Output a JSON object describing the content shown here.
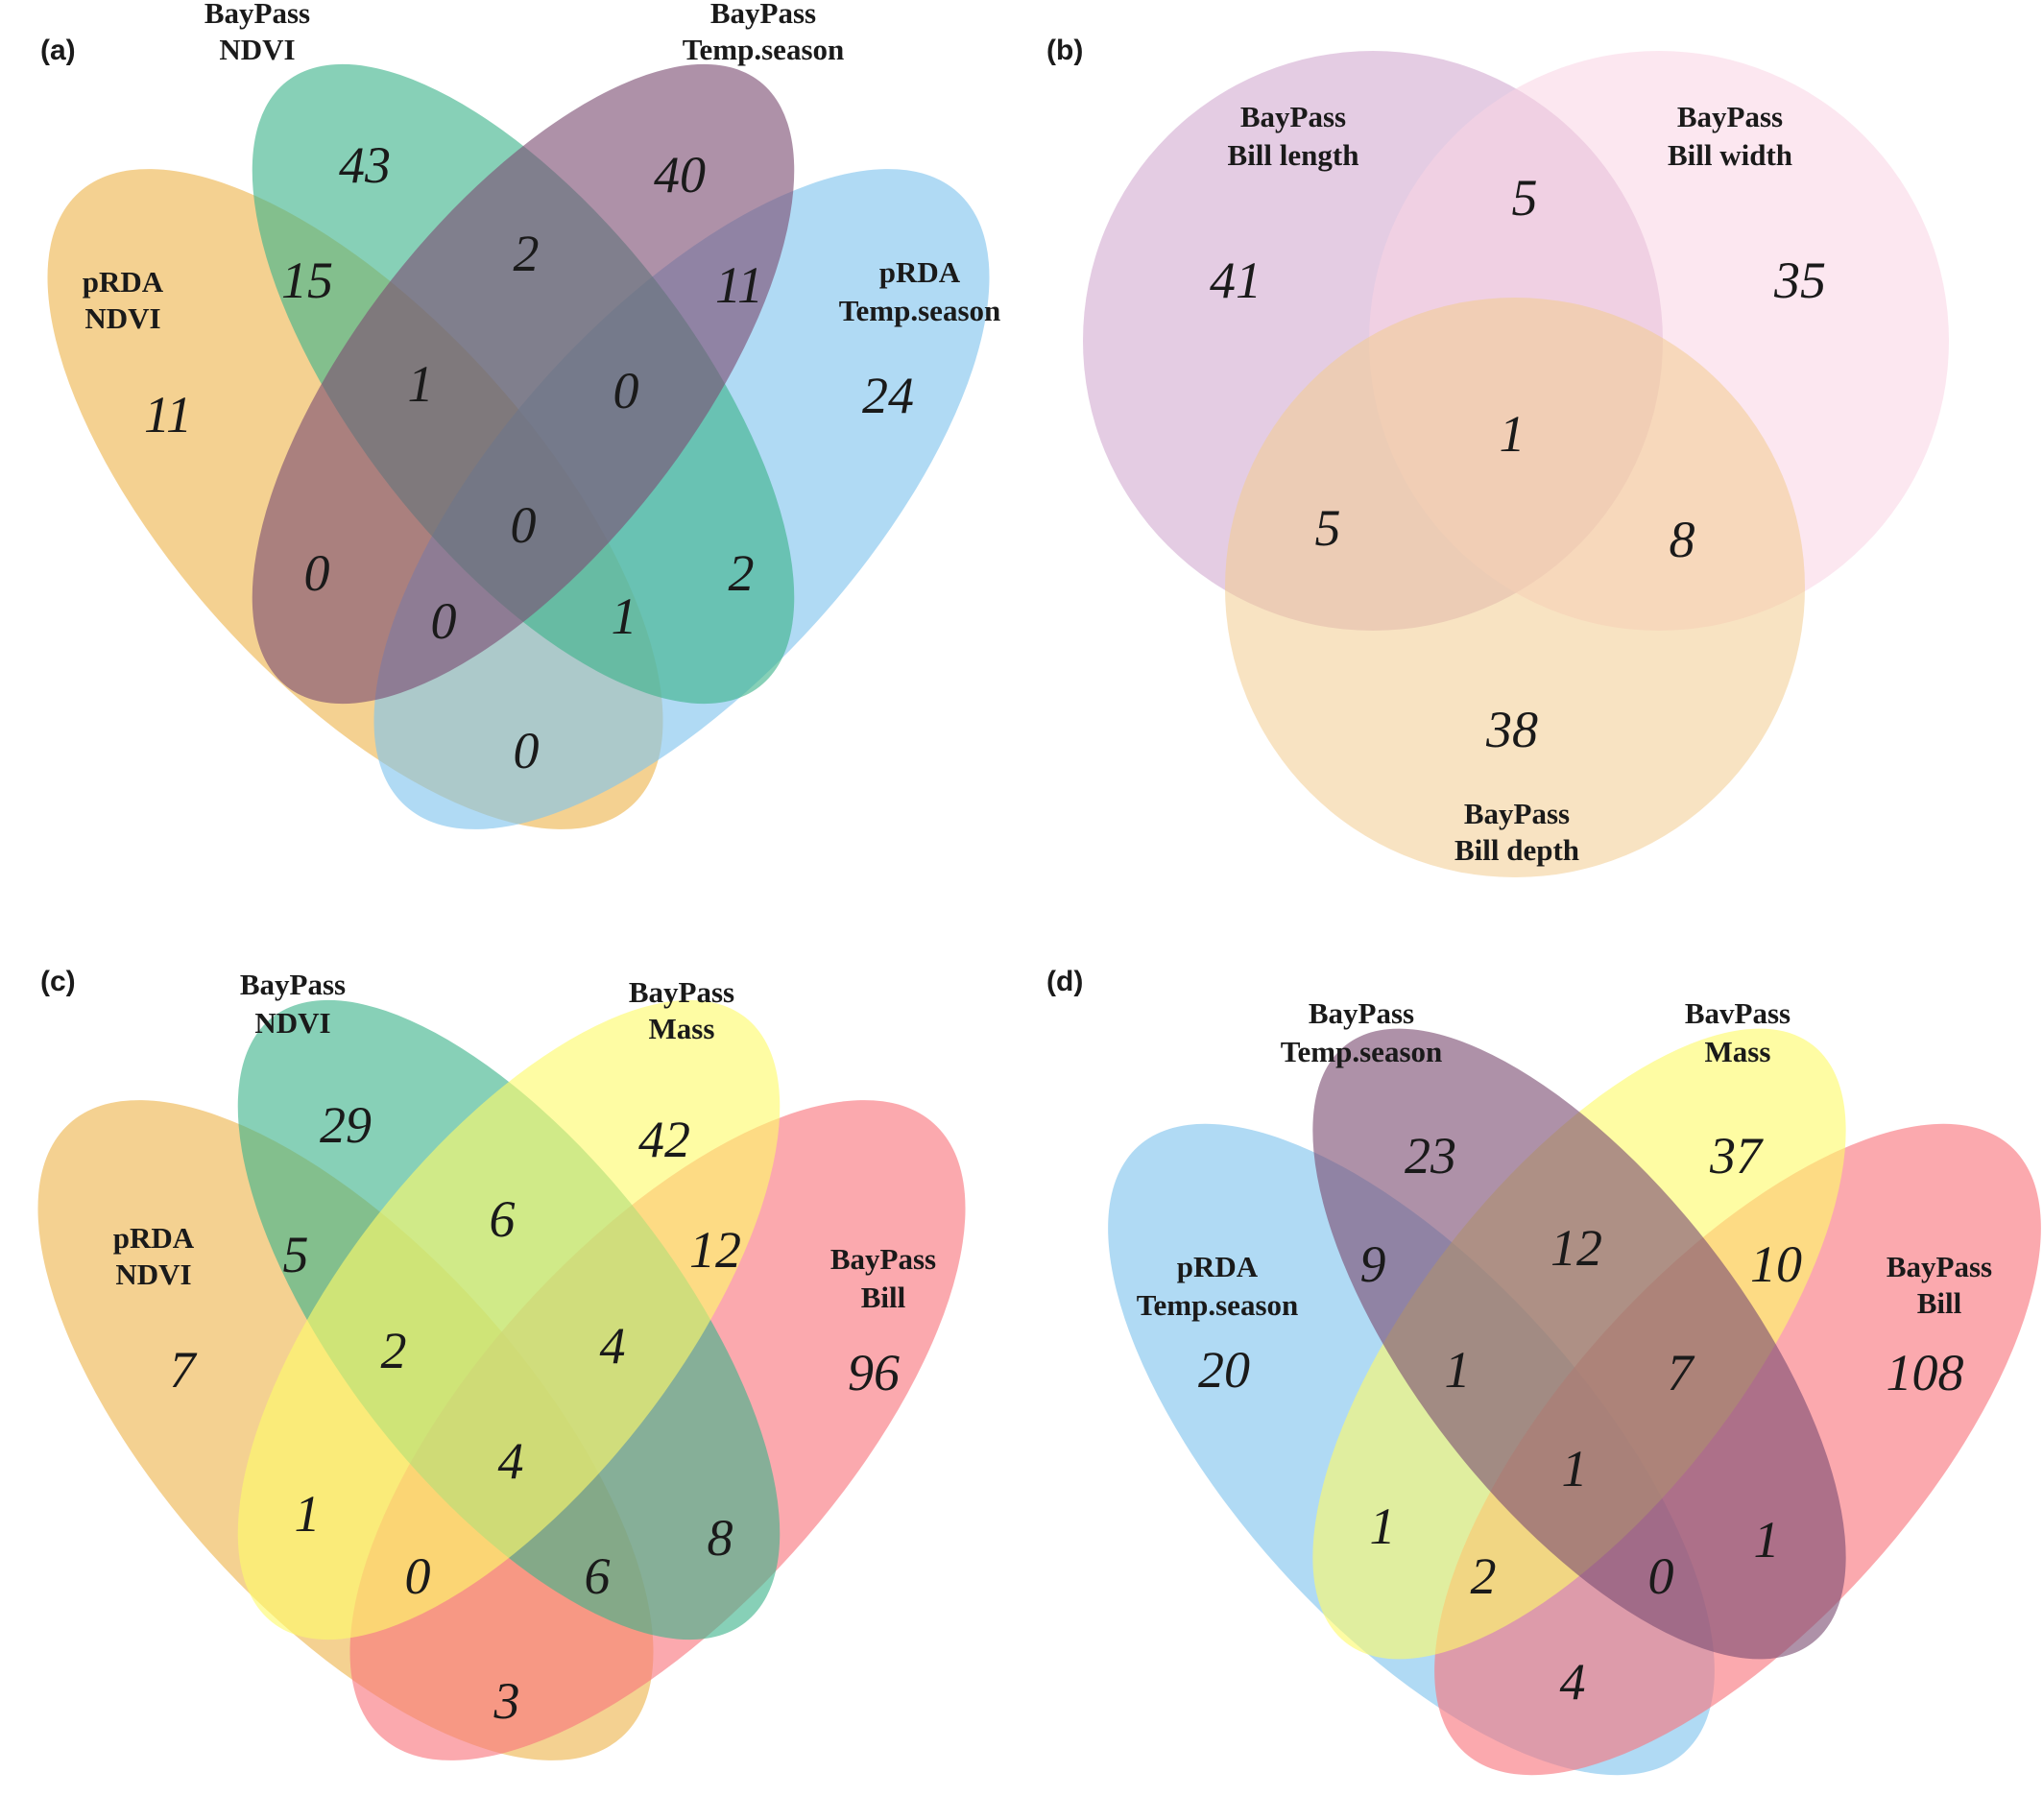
{
  "panels": {
    "a": {
      "label": "(a)",
      "sets": {
        "prda_ndvi": {
          "line1": "pRDA",
          "line2": "NDVI",
          "color": "#EDB54D"
        },
        "baypass_ndvi": {
          "line1": "BayPass",
          "line2": "NDVI",
          "color": "#3DB38A"
        },
        "baypass_temp": {
          "line1": "BayPass",
          "line2": "Temp.season",
          "color": "#7D4E73"
        },
        "prda_temp": {
          "line1": "pRDA",
          "line2": "Temp.season",
          "color": "#7FC4EE"
        }
      },
      "counts": {
        "baypass_ndvi_only": "43",
        "baypass_temp_only": "40",
        "prda_ndvi_only": "11",
        "prda_temp_only": "24",
        "prda_ndvi__baypass_ndvi": "15",
        "baypass_ndvi__baypass_temp": "2",
        "baypass_temp__prda_temp": "11",
        "prda_ndvi__baypass_ndvi__baypass_temp": "1",
        "baypass_ndvi__baypass_temp__prda_temp": "0",
        "all_four": "0",
        "prda_ndvi__baypass_temp": "0",
        "prda_ndvi__baypass_temp__prda_temp": "0",
        "prda_ndvi__baypass_ndvi__prda_temp": "1",
        "baypass_ndvi__prda_temp": "2",
        "prda_ndvi__prda_temp": "0"
      }
    },
    "b": {
      "label": "(b)",
      "sets": {
        "bill_length": {
          "line1": "BayPass",
          "line2": "Bill length",
          "color": "#CDA2CC"
        },
        "bill_width": {
          "line1": "BayPass",
          "line2": "Bill width",
          "color": "#F9D3E4"
        },
        "bill_depth": {
          "line1": "BayPass",
          "line2": "Bill depth",
          "color": "#F2CC8F"
        }
      },
      "counts": {
        "length_only": "41",
        "width_only": "35",
        "depth_only": "38",
        "length__width": "5",
        "length__depth": "5",
        "width__depth": "8",
        "all_three": "1"
      }
    },
    "c": {
      "label": "(c)",
      "sets": {
        "prda_ndvi": {
          "line1": "pRDA",
          "line2": "NDVI",
          "color": "#EDB54D"
        },
        "baypass_ndvi": {
          "line1": "BayPass",
          "line2": "NDVI",
          "color": "#3DB38A"
        },
        "baypass_mass": {
          "line1": "BayPass",
          "line2": "Mass",
          "color": "#FDFA6B"
        },
        "baypass_bill": {
          "line1": "BayPass",
          "line2": "Bill",
          "color": "#F8747D"
        }
      },
      "counts": {
        "baypass_ndvi_only": "29",
        "baypass_mass_only": "42",
        "prda_ndvi_only": "7",
        "baypass_bill_only": "96",
        "prda_ndvi__baypass_ndvi": "5",
        "baypass_ndvi__baypass_mass": "6",
        "baypass_mass__baypass_bill": "12",
        "prda_ndvi__baypass_ndvi__baypass_mass": "2",
        "baypass_ndvi__baypass_mass__baypass_bill": "4",
        "all_four": "4",
        "prda_ndvi__baypass_mass": "1",
        "prda_ndvi__baypass_mass__baypass_bill": "0",
        "prda_ndvi__baypass_ndvi__baypass_bill": "6",
        "baypass_ndvi__baypass_bill": "8",
        "prda_ndvi__baypass_bill": "3"
      }
    },
    "d": {
      "label": "(d)",
      "sets": {
        "prda_temp": {
          "line1": "pRDA",
          "line2": "Temp.season",
          "color": "#7FC4EE"
        },
        "baypass_temp": {
          "line1": "BayPass",
          "line2": "Temp.season",
          "color": "#7D4E73"
        },
        "baypass_mass": {
          "line1": "BavPass",
          "line2": "Mass",
          "color": "#FDFA6B"
        },
        "baypass_bill": {
          "line1": "BayPass",
          "line2": "Bill",
          "color": "#F8747D"
        }
      },
      "counts": {
        "baypass_temp_only": "23",
        "baypass_mass_only": "37",
        "prda_temp_only": "20",
        "baypass_bill_only": "108",
        "prda_temp__baypass_temp": "9",
        "baypass_temp__baypass_mass": "12",
        "baypass_mass__baypass_bill": "10",
        "prda_temp__baypass_temp__baypass_mass": "1",
        "baypass_temp__baypass_mass__baypass_bill": "7",
        "all_four": "1",
        "prda_temp__baypass_mass": "1",
        "prda_temp__baypass_mass__baypass_bill": "2",
        "prda_temp__baypass_temp__baypass_bill": "0",
        "baypass_temp__baypass_bill": "1",
        "prda_temp__baypass_bill": "4"
      }
    }
  }
}
